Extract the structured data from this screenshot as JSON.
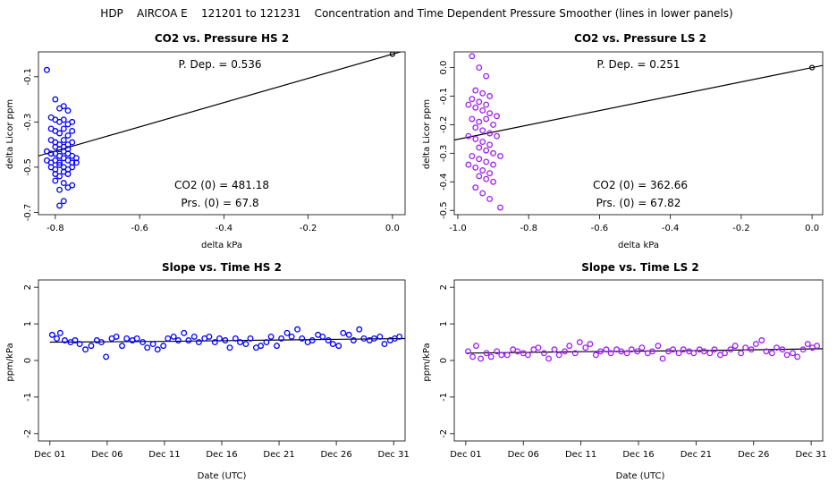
{
  "figure": {
    "title": "HDP    AIRCOA E    121201 to 121231    Concentration and Time Dependent Pressure Smoother (lines in lower panels)"
  },
  "colors": {
    "hs": "#0000ff",
    "ls": "#a020f0",
    "line": "#000000"
  },
  "chart_data": [
    {
      "type": "scatter",
      "title": "CO2 vs. Pressure HS 2",
      "xlabel": "delta kPa",
      "ylabel": "delta Licor ppm",
      "xlim": [
        -0.84,
        0.03
      ],
      "ylim": [
        -0.71,
        0.01
      ],
      "xticks": [
        -0.8,
        -0.6,
        -0.4,
        -0.2,
        0.0
      ],
      "xtick_labels": [
        "-0.8",
        "-0.6",
        "-0.4",
        "-0.2",
        "0.0"
      ],
      "yticks": [
        -0.7,
        -0.5,
        -0.3,
        -0.1
      ],
      "ytick_labels": [
        "-0.7",
        "-0.5",
        "-0.3",
        "-0.1"
      ],
      "color": "#0000ff",
      "fit_line": {
        "slope": 0.536,
        "intercept": 0.0
      },
      "origin_point": [
        0.0,
        0.0
      ],
      "annotations": {
        "pdep": "P. Dep. =  0.536",
        "co2": "CO2 (0) =  481.18",
        "prs": "Prs. (0) =  67.8"
      },
      "points": [
        [
          -0.82,
          -0.07
        ],
        [
          -0.8,
          -0.2
        ],
        [
          -0.79,
          -0.24
        ],
        [
          -0.78,
          -0.23
        ],
        [
          -0.77,
          -0.25
        ],
        [
          -0.81,
          -0.28
        ],
        [
          -0.8,
          -0.29
        ],
        [
          -0.79,
          -0.3
        ],
        [
          -0.78,
          -0.29
        ],
        [
          -0.77,
          -0.31
        ],
        [
          -0.76,
          -0.3
        ],
        [
          -0.81,
          -0.33
        ],
        [
          -0.8,
          -0.34
        ],
        [
          -0.79,
          -0.35
        ],
        [
          -0.78,
          -0.33
        ],
        [
          -0.77,
          -0.36
        ],
        [
          -0.76,
          -0.34
        ],
        [
          -0.81,
          -0.38
        ],
        [
          -0.8,
          -0.39
        ],
        [
          -0.79,
          -0.4
        ],
        [
          -0.78,
          -0.38
        ],
        [
          -0.77,
          -0.4
        ],
        [
          -0.76,
          -0.39
        ],
        [
          -0.8,
          -0.41
        ],
        [
          -0.79,
          -0.42
        ],
        [
          -0.78,
          -0.41
        ],
        [
          -0.77,
          -0.42
        ],
        [
          -0.82,
          -0.43
        ],
        [
          -0.81,
          -0.44
        ],
        [
          -0.8,
          -0.44
        ],
        [
          -0.79,
          -0.45
        ],
        [
          -0.78,
          -0.43
        ],
        [
          -0.77,
          -0.44
        ],
        [
          -0.76,
          -0.45
        ],
        [
          -0.75,
          -0.46
        ],
        [
          -0.82,
          -0.47
        ],
        [
          -0.81,
          -0.48
        ],
        [
          -0.8,
          -0.47
        ],
        [
          -0.79,
          -0.48
        ],
        [
          -0.78,
          -0.46
        ],
        [
          -0.77,
          -0.47
        ],
        [
          -0.76,
          -0.48
        ],
        [
          -0.81,
          -0.5
        ],
        [
          -0.8,
          -0.51
        ],
        [
          -0.79,
          -0.49
        ],
        [
          -0.78,
          -0.5
        ],
        [
          -0.77,
          -0.51
        ],
        [
          -0.76,
          -0.5
        ],
        [
          -0.75,
          -0.48
        ],
        [
          -0.8,
          -0.53
        ],
        [
          -0.79,
          -0.54
        ],
        [
          -0.78,
          -0.52
        ],
        [
          -0.77,
          -0.53
        ],
        [
          -0.8,
          -0.56
        ],
        [
          -0.78,
          -0.57
        ],
        [
          -0.76,
          -0.58
        ],
        [
          -0.79,
          -0.6
        ],
        [
          -0.77,
          -0.59
        ],
        [
          -0.78,
          -0.65
        ],
        [
          -0.79,
          -0.67
        ]
      ]
    },
    {
      "type": "scatter",
      "title": "CO2 vs. Pressure LS 2",
      "xlabel": "delta kPa",
      "ylabel": "delta Licor ppm",
      "xlim": [
        -1.01,
        0.03
      ],
      "ylim": [
        -0.515,
        0.055
      ],
      "xticks": [
        -1.0,
        -0.8,
        -0.6,
        -0.4,
        -0.2,
        0.0
      ],
      "xtick_labels": [
        "-1.0",
        "-0.8",
        "-0.6",
        "-0.4",
        "-0.2",
        "0.0"
      ],
      "yticks": [
        -0.5,
        -0.4,
        -0.3,
        -0.2,
        -0.1,
        0.0
      ],
      "ytick_labels": [
        "-0.5",
        "-0.4",
        "-0.3",
        "-0.2",
        "-0.1",
        "0.0"
      ],
      "color": "#a020f0",
      "fit_line": {
        "slope": 0.251,
        "intercept": 0.0
      },
      "origin_point": [
        0.0,
        0.0
      ],
      "annotations": {
        "pdep": "P. Dep. =  0.251",
        "co2": "CO2 (0) =  362.66",
        "prs": "Prs. (0) =  67.82"
      },
      "points": [
        [
          -0.96,
          0.04
        ],
        [
          -0.94,
          0.0
        ],
        [
          -0.92,
          -0.03
        ],
        [
          -0.95,
          -0.08
        ],
        [
          -0.93,
          -0.09
        ],
        [
          -0.91,
          -0.1
        ],
        [
          -0.96,
          -0.11
        ],
        [
          -0.94,
          -0.12
        ],
        [
          -0.92,
          -0.13
        ],
        [
          -0.95,
          -0.14
        ],
        [
          -0.93,
          -0.15
        ],
        [
          -0.91,
          -0.16
        ],
        [
          -0.89,
          -0.17
        ],
        [
          -0.96,
          -0.18
        ],
        [
          -0.94,
          -0.19
        ],
        [
          -0.92,
          -0.18
        ],
        [
          -0.9,
          -0.2
        ],
        [
          -0.95,
          -0.21
        ],
        [
          -0.93,
          -0.22
        ],
        [
          -0.91,
          -0.23
        ],
        [
          -0.97,
          -0.24
        ],
        [
          -0.95,
          -0.25
        ],
        [
          -0.93,
          -0.26
        ],
        [
          -0.91,
          -0.27
        ],
        [
          -0.94,
          -0.28
        ],
        [
          -0.92,
          -0.29
        ],
        [
          -0.9,
          -0.3
        ],
        [
          -0.96,
          -0.31
        ],
        [
          -0.94,
          -0.32
        ],
        [
          -0.92,
          -0.33
        ],
        [
          -0.9,
          -0.34
        ],
        [
          -0.95,
          -0.35
        ],
        [
          -0.93,
          -0.36
        ],
        [
          -0.91,
          -0.37
        ],
        [
          -0.94,
          -0.38
        ],
        [
          -0.92,
          -0.39
        ],
        [
          -0.9,
          -0.4
        ],
        [
          -0.95,
          -0.42
        ],
        [
          -0.93,
          -0.44
        ],
        [
          -0.91,
          -0.46
        ],
        [
          -0.88,
          -0.49
        ],
        [
          -0.97,
          -0.13
        ],
        [
          -0.89,
          -0.24
        ],
        [
          -0.97,
          -0.34
        ],
        [
          -0.88,
          -0.31
        ]
      ]
    },
    {
      "type": "scatter",
      "title": "Slope vs. Time HS 2",
      "xlabel": "Date (UTC)",
      "ylabel": "ppm/kPa",
      "xlim": [
        0,
        32
      ],
      "ylim": [
        -2.2,
        2.2
      ],
      "xticks": [
        1,
        6,
        11,
        16,
        21,
        26,
        31
      ],
      "xtick_labels": [
        "Dec 01",
        "Dec 06",
        "Dec 11",
        "Dec 16",
        "Dec 21",
        "Dec 26",
        "Dec 31"
      ],
      "yticks": [
        -2,
        -1,
        0,
        1,
        2
      ],
      "ytick_labels": [
        "-2",
        "-1",
        "0",
        "1",
        "2"
      ],
      "color": "#0000ff",
      "smoother": [
        [
          1,
          0.5
        ],
        [
          11,
          0.52
        ],
        [
          21,
          0.56
        ],
        [
          32,
          0.6
        ]
      ],
      "points": [
        [
          1.2,
          0.7
        ],
        [
          1.6,
          0.6
        ],
        [
          1.9,
          0.75
        ],
        [
          2.3,
          0.55
        ],
        [
          2.8,
          0.5
        ],
        [
          3.2,
          0.55
        ],
        [
          3.6,
          0.45
        ],
        [
          4.1,
          0.3
        ],
        [
          4.6,
          0.4
        ],
        [
          5.1,
          0.55
        ],
        [
          5.5,
          0.5
        ],
        [
          5.9,
          0.1
        ],
        [
          6.4,
          0.6
        ],
        [
          6.8,
          0.65
        ],
        [
          7.3,
          0.4
        ],
        [
          7.7,
          0.6
        ],
        [
          8.2,
          0.55
        ],
        [
          8.6,
          0.6
        ],
        [
          9.1,
          0.5
        ],
        [
          9.5,
          0.35
        ],
        [
          10.0,
          0.45
        ],
        [
          10.4,
          0.3
        ],
        [
          10.9,
          0.4
        ],
        [
          11.3,
          0.6
        ],
        [
          11.8,
          0.65
        ],
        [
          12.2,
          0.55
        ],
        [
          12.7,
          0.75
        ],
        [
          13.1,
          0.55
        ],
        [
          13.6,
          0.65
        ],
        [
          14.0,
          0.5
        ],
        [
          14.5,
          0.6
        ],
        [
          14.9,
          0.65
        ],
        [
          15.4,
          0.5
        ],
        [
          15.8,
          0.6
        ],
        [
          16.3,
          0.55
        ],
        [
          16.7,
          0.35
        ],
        [
          17.2,
          0.6
        ],
        [
          17.6,
          0.5
        ],
        [
          18.1,
          0.45
        ],
        [
          18.5,
          0.6
        ],
        [
          19.0,
          0.35
        ],
        [
          19.4,
          0.4
        ],
        [
          19.9,
          0.5
        ],
        [
          20.3,
          0.65
        ],
        [
          20.8,
          0.4
        ],
        [
          21.2,
          0.6
        ],
        [
          21.7,
          0.75
        ],
        [
          22.1,
          0.65
        ],
        [
          22.6,
          0.85
        ],
        [
          23.0,
          0.6
        ],
        [
          23.5,
          0.5
        ],
        [
          23.9,
          0.55
        ],
        [
          24.4,
          0.7
        ],
        [
          24.8,
          0.65
        ],
        [
          25.3,
          0.55
        ],
        [
          25.7,
          0.45
        ],
        [
          26.2,
          0.4
        ],
        [
          26.6,
          0.75
        ],
        [
          27.1,
          0.7
        ],
        [
          27.5,
          0.55
        ],
        [
          28.0,
          0.85
        ],
        [
          28.4,
          0.6
        ],
        [
          28.9,
          0.55
        ],
        [
          29.3,
          0.6
        ],
        [
          29.8,
          0.65
        ],
        [
          30.2,
          0.45
        ],
        [
          30.7,
          0.55
        ],
        [
          31.1,
          0.6
        ],
        [
          31.5,
          0.65
        ]
      ]
    },
    {
      "type": "scatter",
      "title": "Slope vs. Time LS 2",
      "xlabel": "Date (UTC)",
      "ylabel": "ppm/kPa",
      "xlim": [
        0,
        32
      ],
      "ylim": [
        -2.2,
        2.2
      ],
      "xticks": [
        1,
        6,
        11,
        16,
        21,
        26,
        31
      ],
      "xtick_labels": [
        "Dec 01",
        "Dec 06",
        "Dec 11",
        "Dec 16",
        "Dec 21",
        "Dec 26",
        "Dec 31"
      ],
      "yticks": [
        -2,
        -1,
        0,
        1,
        2
      ],
      "ytick_labels": [
        "-2",
        "-1",
        "0",
        "1",
        "2"
      ],
      "color": "#a020f0",
      "smoother": [
        [
          1,
          0.2
        ],
        [
          11,
          0.24
        ],
        [
          21,
          0.27
        ],
        [
          32,
          0.32
        ]
      ],
      "points": [
        [
          1.2,
          0.25
        ],
        [
          1.6,
          0.1
        ],
        [
          1.9,
          0.4
        ],
        [
          2.3,
          0.05
        ],
        [
          2.8,
          0.2
        ],
        [
          3.2,
          0.1
        ],
        [
          3.7,
          0.25
        ],
        [
          4.1,
          0.15
        ],
        [
          4.6,
          0.15
        ],
        [
          5.1,
          0.3
        ],
        [
          5.5,
          0.25
        ],
        [
          6.0,
          0.2
        ],
        [
          6.4,
          0.15
        ],
        [
          6.9,
          0.3
        ],
        [
          7.3,
          0.35
        ],
        [
          7.8,
          0.2
        ],
        [
          8.2,
          0.05
        ],
        [
          8.7,
          0.3
        ],
        [
          9.1,
          0.15
        ],
        [
          9.6,
          0.25
        ],
        [
          10.0,
          0.4
        ],
        [
          10.5,
          0.2
        ],
        [
          10.9,
          0.5
        ],
        [
          11.4,
          0.35
        ],
        [
          11.8,
          0.45
        ],
        [
          12.3,
          0.15
        ],
        [
          12.7,
          0.25
        ],
        [
          13.2,
          0.3
        ],
        [
          13.6,
          0.2
        ],
        [
          14.1,
          0.3
        ],
        [
          14.5,
          0.25
        ],
        [
          15.0,
          0.2
        ],
        [
          15.4,
          0.3
        ],
        [
          15.9,
          0.25
        ],
        [
          16.3,
          0.35
        ],
        [
          16.8,
          0.2
        ],
        [
          17.2,
          0.25
        ],
        [
          17.7,
          0.4
        ],
        [
          18.1,
          0.05
        ],
        [
          18.6,
          0.25
        ],
        [
          19.0,
          0.3
        ],
        [
          19.5,
          0.2
        ],
        [
          19.9,
          0.3
        ],
        [
          20.4,
          0.25
        ],
        [
          20.8,
          0.2
        ],
        [
          21.3,
          0.3
        ],
        [
          21.7,
          0.25
        ],
        [
          22.2,
          0.2
        ],
        [
          22.6,
          0.3
        ],
        [
          23.1,
          0.15
        ],
        [
          23.5,
          0.2
        ],
        [
          24.0,
          0.3
        ],
        [
          24.4,
          0.4
        ],
        [
          24.9,
          0.2
        ],
        [
          25.3,
          0.35
        ],
        [
          25.8,
          0.3
        ],
        [
          26.2,
          0.45
        ],
        [
          26.7,
          0.55
        ],
        [
          27.1,
          0.25
        ],
        [
          27.6,
          0.2
        ],
        [
          28.0,
          0.35
        ],
        [
          28.5,
          0.3
        ],
        [
          28.9,
          0.15
        ],
        [
          29.4,
          0.2
        ],
        [
          29.8,
          0.1
        ],
        [
          30.3,
          0.3
        ],
        [
          30.7,
          0.45
        ],
        [
          31.1,
          0.35
        ],
        [
          31.5,
          0.4
        ]
      ]
    }
  ]
}
